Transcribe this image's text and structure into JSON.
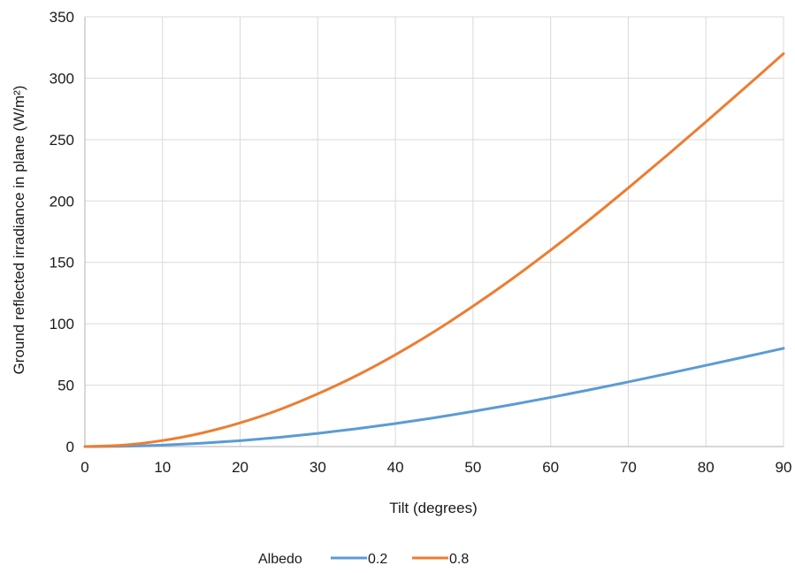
{
  "chart_data": {
    "type": "line",
    "title": "",
    "xlabel": "Tilt (degrees)",
    "ylabel": "Ground reflected irradiance in plane (W/m²)",
    "xlim": [
      0,
      90
    ],
    "ylim": [
      0,
      350
    ],
    "xticks": [
      0,
      10,
      20,
      30,
      40,
      50,
      60,
      70,
      80,
      90
    ],
    "yticks": [
      0,
      50,
      100,
      150,
      200,
      250,
      300,
      350
    ],
    "grid": true,
    "legend": {
      "title": "Albedo",
      "placement": "bottom-center"
    },
    "x": [
      0,
      5,
      10,
      15,
      20,
      25,
      30,
      35,
      40,
      45,
      50,
      55,
      60,
      65,
      70,
      75,
      80,
      85,
      90
    ],
    "series": [
      {
        "name": "0.2",
        "color": "#5B9BD5",
        "values": [
          0,
          0.3,
          1.2,
          2.7,
          4.8,
          7.5,
          10.7,
          14.5,
          18.7,
          23.4,
          28.6,
          34.1,
          40.0,
          46.2,
          52.6,
          59.3,
          66.1,
          73.0,
          80.0
        ]
      },
      {
        "name": "0.8",
        "color": "#ED7D31",
        "values": [
          0,
          1.2,
          4.9,
          10.9,
          19.3,
          29.9,
          42.9,
          57.8,
          74.8,
          93.6,
          114.3,
          136.4,
          160.0,
          184.7,
          210.6,
          237.2,
          264.4,
          292.0,
          320.0
        ]
      }
    ]
  }
}
